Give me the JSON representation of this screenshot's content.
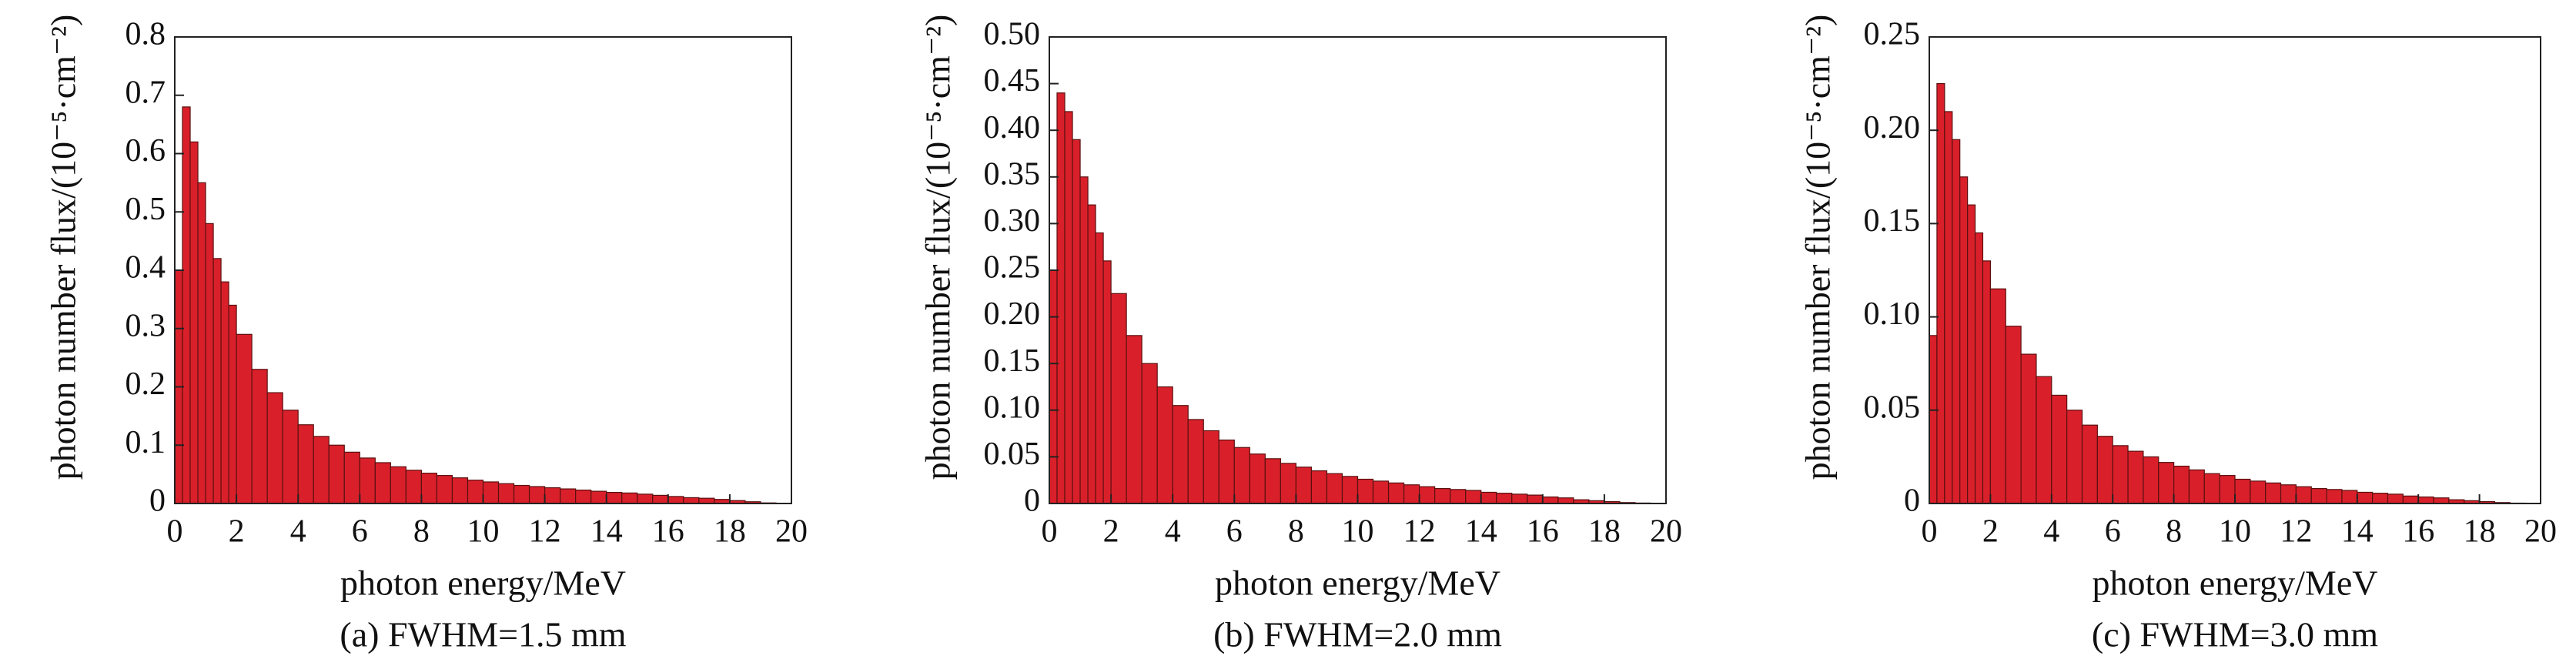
{
  "chart_data": [
    {
      "type": "histogram",
      "caption": "(a) FWHM=1.5 mm",
      "xlabel": "photon energy/MeV",
      "ylabel": "photon number flux/(10⁻⁵·cm⁻²)",
      "color": "#d9202a",
      "bins": [
        0,
        0.25,
        0.5,
        0.75,
        1,
        1.25,
        1.5,
        1.75,
        2,
        2.5,
        3,
        3.5,
        4,
        4.5,
        5,
        5.5,
        6,
        6.5,
        7,
        7.5,
        8,
        8.5,
        9,
        9.5,
        10,
        10.5,
        11,
        11.5,
        12,
        12.5,
        13,
        13.5,
        14,
        14.5,
        15,
        15.5,
        16,
        16.5,
        17,
        17.5,
        18,
        18.5,
        19,
        19.5
      ],
      "values": [
        0.4,
        0.68,
        0.62,
        0.55,
        0.48,
        0.42,
        0.38,
        0.34,
        0.29,
        0.23,
        0.19,
        0.16,
        0.135,
        0.115,
        0.1,
        0.088,
        0.078,
        0.07,
        0.063,
        0.057,
        0.052,
        0.048,
        0.044,
        0.04,
        0.037,
        0.034,
        0.031,
        0.029,
        0.027,
        0.025,
        0.023,
        0.021,
        0.019,
        0.018,
        0.016,
        0.014,
        0.012,
        0.01,
        0.009,
        0.007,
        0.005,
        0.003,
        0.001
      ],
      "xlim": [
        0,
        20
      ],
      "xticks": [
        0,
        2,
        4,
        6,
        8,
        10,
        12,
        14,
        16,
        18,
        20
      ],
      "ylim": [
        0,
        0.8
      ],
      "yticks": [
        0,
        0.1,
        0.2,
        0.3,
        0.4,
        0.5,
        0.6,
        0.7,
        0.8
      ]
    },
    {
      "type": "histogram",
      "caption": "(b) FWHM=2.0 mm",
      "xlabel": "photon energy/MeV",
      "ylabel": "photon number flux/(10⁻⁵·cm⁻²)",
      "color": "#d9202a",
      "bins": [
        0,
        0.25,
        0.5,
        0.75,
        1,
        1.25,
        1.5,
        1.75,
        2,
        2.5,
        3,
        3.5,
        4,
        4.5,
        5,
        5.5,
        6,
        6.5,
        7,
        7.5,
        8,
        8.5,
        9,
        9.5,
        10,
        10.5,
        11,
        11.5,
        12,
        12.5,
        13,
        13.5,
        14,
        14.5,
        15,
        15.5,
        16,
        16.5,
        17,
        17.5,
        18,
        18.5,
        19,
        19.5
      ],
      "values": [
        0.25,
        0.44,
        0.42,
        0.39,
        0.35,
        0.32,
        0.29,
        0.26,
        0.225,
        0.18,
        0.15,
        0.125,
        0.105,
        0.09,
        0.078,
        0.068,
        0.06,
        0.053,
        0.048,
        0.043,
        0.039,
        0.035,
        0.032,
        0.029,
        0.026,
        0.024,
        0.022,
        0.02,
        0.018,
        0.016,
        0.015,
        0.014,
        0.012,
        0.011,
        0.01,
        0.009,
        0.007,
        0.006,
        0.004,
        0.003,
        0.002,
        0.001,
        0.0005
      ],
      "xlim": [
        0,
        20
      ],
      "xticks": [
        0,
        2,
        4,
        6,
        8,
        10,
        12,
        14,
        16,
        18,
        20
      ],
      "ylim": [
        0,
        0.5
      ],
      "yticks": [
        0,
        0.05,
        {
          "value": 0.1,
          "label": "0.10"
        },
        0.15,
        {
          "value": 0.2,
          "label": "0.20"
        },
        0.25,
        {
          "value": 0.3,
          "label": "0.30"
        },
        0.35,
        {
          "value": 0.4,
          "label": "0.40"
        },
        0.45,
        {
          "value": 0.5,
          "label": "0.50"
        }
      ]
    },
    {
      "type": "histogram",
      "caption": "(c) FWHM=3.0 mm",
      "xlabel": "photon energy/MeV",
      "ylabel": "photon number flux/(10⁻⁵·cm⁻²)",
      "color": "#d9202a",
      "bins": [
        0,
        0.25,
        0.5,
        0.75,
        1,
        1.25,
        1.5,
        1.75,
        2,
        2.5,
        3,
        3.5,
        4,
        4.5,
        5,
        5.5,
        6,
        6.5,
        7,
        7.5,
        8,
        8.5,
        9,
        9.5,
        10,
        10.5,
        11,
        11.5,
        12,
        12.5,
        13,
        13.5,
        14,
        14.5,
        15,
        15.5,
        16,
        16.5,
        17,
        17.5,
        18,
        18.5,
        19,
        19.5
      ],
      "values": [
        0.09,
        0.225,
        0.21,
        0.195,
        0.175,
        0.16,
        0.145,
        0.13,
        0.115,
        0.095,
        0.08,
        0.068,
        0.058,
        0.05,
        0.042,
        0.036,
        0.031,
        0.028,
        0.025,
        0.022,
        0.02,
        0.018,
        0.016,
        0.015,
        0.013,
        0.012,
        0.011,
        0.01,
        0.009,
        0.008,
        0.0075,
        0.007,
        0.006,
        0.0055,
        0.005,
        0.004,
        0.0035,
        0.003,
        0.002,
        0.0015,
        0.001,
        0.0005,
        0.0002
      ],
      "xlim": [
        0,
        20
      ],
      "xticks": [
        0,
        2,
        4,
        6,
        8,
        10,
        12,
        14,
        16,
        18,
        20
      ],
      "ylim": [
        0,
        0.25
      ],
      "yticks": [
        0,
        0.05,
        {
          "value": 0.1,
          "label": "0.10"
        },
        0.15,
        {
          "value": 0.2,
          "label": "0.20"
        },
        0.25
      ]
    }
  ]
}
